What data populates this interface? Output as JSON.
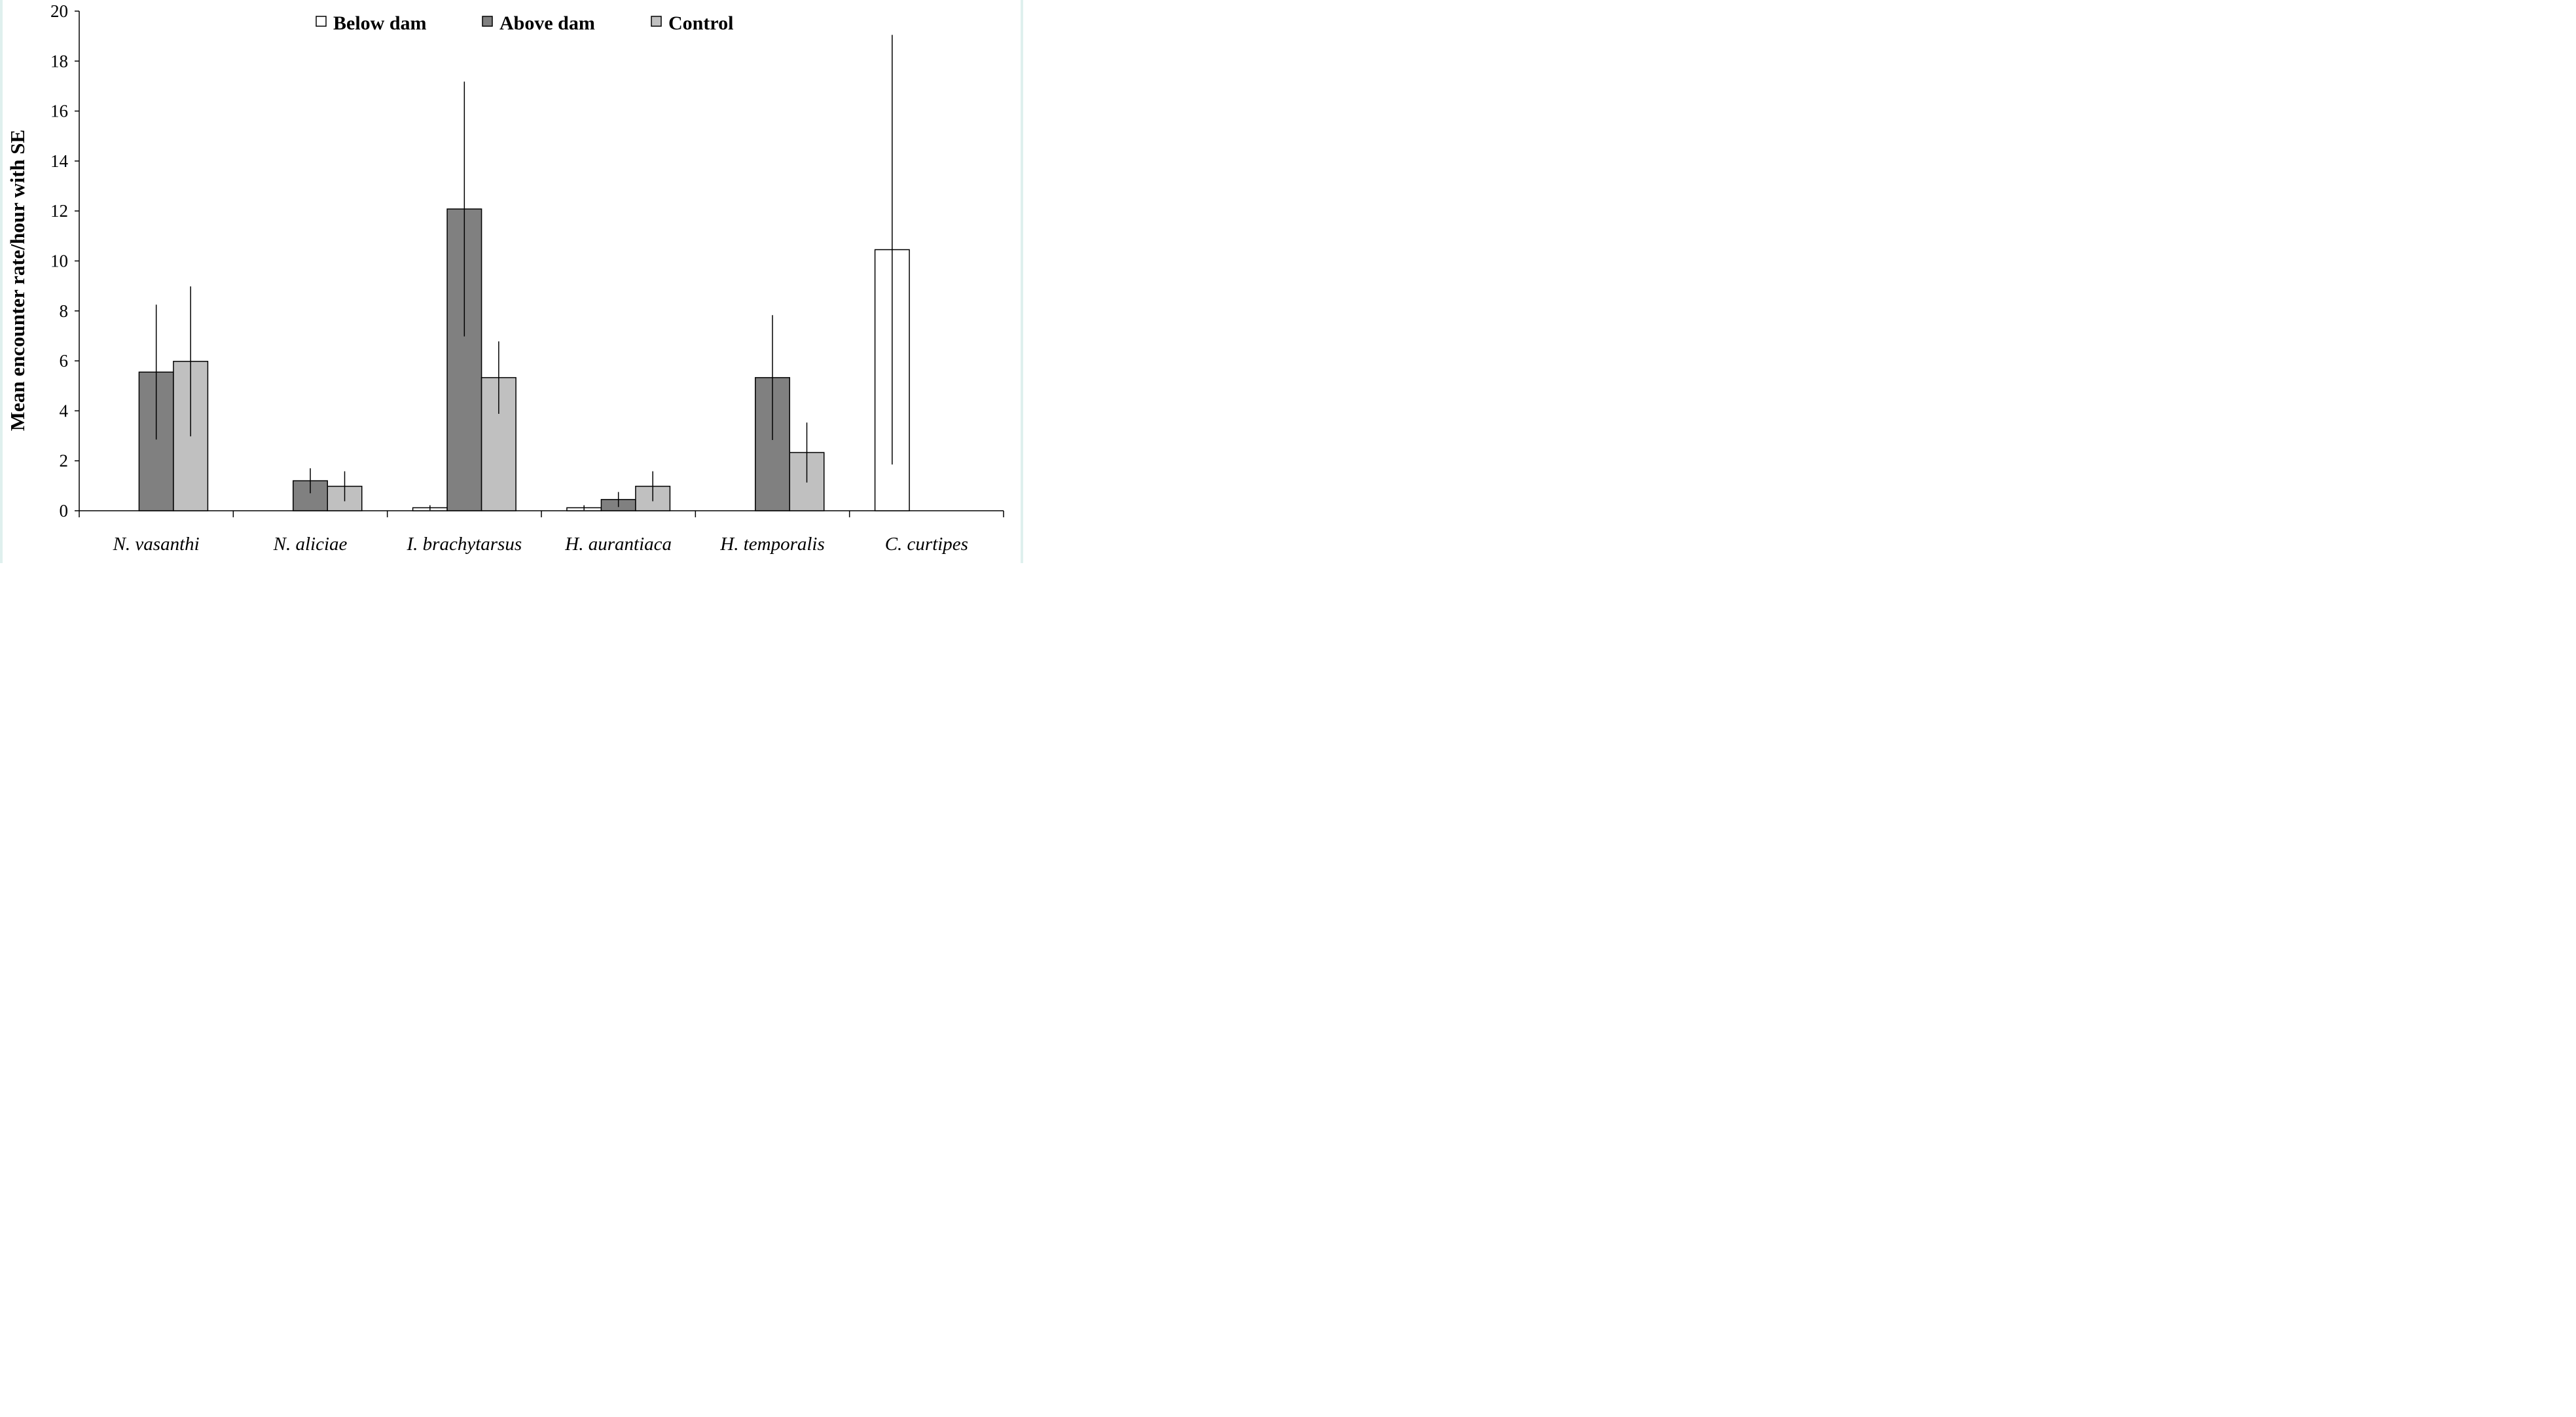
{
  "chart_data": {
    "type": "bar",
    "title": "",
    "xlabel": "",
    "ylabel": "Mean encounter  rate/hour with SE",
    "ylim": [
      0,
      20
    ],
    "yticks": [
      0,
      2,
      4,
      6,
      8,
      10,
      12,
      14,
      16,
      18,
      20
    ],
    "grid": false,
    "legend_position": "top-center",
    "categories": [
      "N. vasanthi",
      "N. aliciae",
      "I. brachytarsus",
      "H. aurantiaca",
      "H. temporalis",
      "C. curtipes"
    ],
    "series": [
      {
        "name": "Below dam",
        "color": "#ffffff",
        "values": [
          0,
          0,
          0.12,
          0.12,
          0,
          10.45
        ],
        "error": [
          0,
          0,
          0.1,
          0.1,
          0,
          8.6
        ]
      },
      {
        "name": "Above dam",
        "color": "#808080",
        "values": [
          5.55,
          1.2,
          12.08,
          0.45,
          5.33,
          0
        ],
        "error": [
          2.7,
          0.5,
          5.1,
          0.3,
          2.5,
          0
        ]
      },
      {
        "name": "Control",
        "color": "#c0c0c0",
        "values": [
          5.98,
          0.98,
          5.33,
          0.98,
          2.33,
          0
        ],
        "error": [
          3.0,
          0.6,
          1.45,
          0.6,
          1.2,
          0
        ]
      }
    ]
  }
}
